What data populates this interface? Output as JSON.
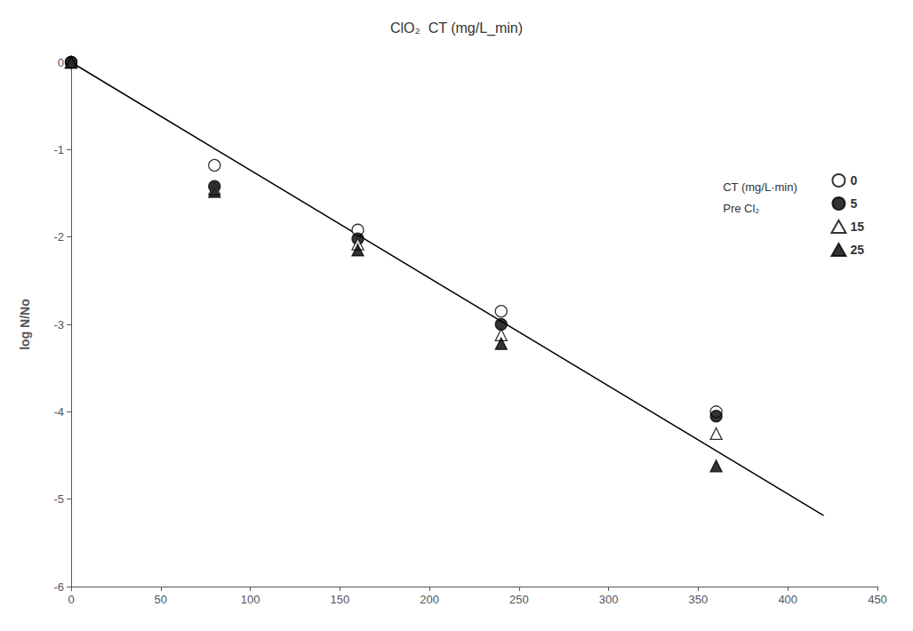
{
  "chart_data": {
    "type": "scatter",
    "title": "ClO₂  CT (mg/L_min)",
    "ylabel": "log N/No",
    "annotation": "CT (mg/L·min)\nPre Cl₂",
    "xlim": [
      0,
      450
    ],
    "xticks": [
      0,
      50,
      100,
      150,
      200,
      250,
      300,
      350,
      400,
      450
    ],
    "ylim": [
      -6,
      0
    ],
    "yticks": [
      0,
      -1,
      -2,
      -3,
      -4,
      -5,
      -6
    ],
    "grid": false,
    "legend": "right",
    "series": [
      {
        "type": "line",
        "color": "black",
        "line_style": "solid",
        "x": [
          0,
          420
        ],
        "values": [
          0,
          -5.187
        ]
      },
      {
        "name": "0",
        "color": "black",
        "marker": "circle_open",
        "x": [
          0,
          80,
          160,
          240,
          360
        ],
        "values": [
          0,
          -1.18,
          -1.92,
          -2.85,
          -4.0
        ]
      },
      {
        "name": "5",
        "color": "black",
        "marker": "circle",
        "x": [
          0,
          80,
          160,
          240,
          360
        ],
        "values": [
          0,
          -1.42,
          -2.02,
          -3.0,
          -4.05
        ]
      },
      {
        "name": "15",
        "color": "black",
        "marker": "triangle_open",
        "x": [
          0,
          80,
          160,
          240,
          360
        ],
        "values": [
          0,
          -1.45,
          -2.08,
          -3.12,
          -4.25
        ]
      },
      {
        "name": "25",
        "color": "black",
        "marker": "triangle",
        "x": [
          0,
          80,
          160,
          240,
          360
        ],
        "values": [
          0,
          -1.48,
          -2.15,
          -3.22,
          -4.62
        ]
      }
    ]
  }
}
